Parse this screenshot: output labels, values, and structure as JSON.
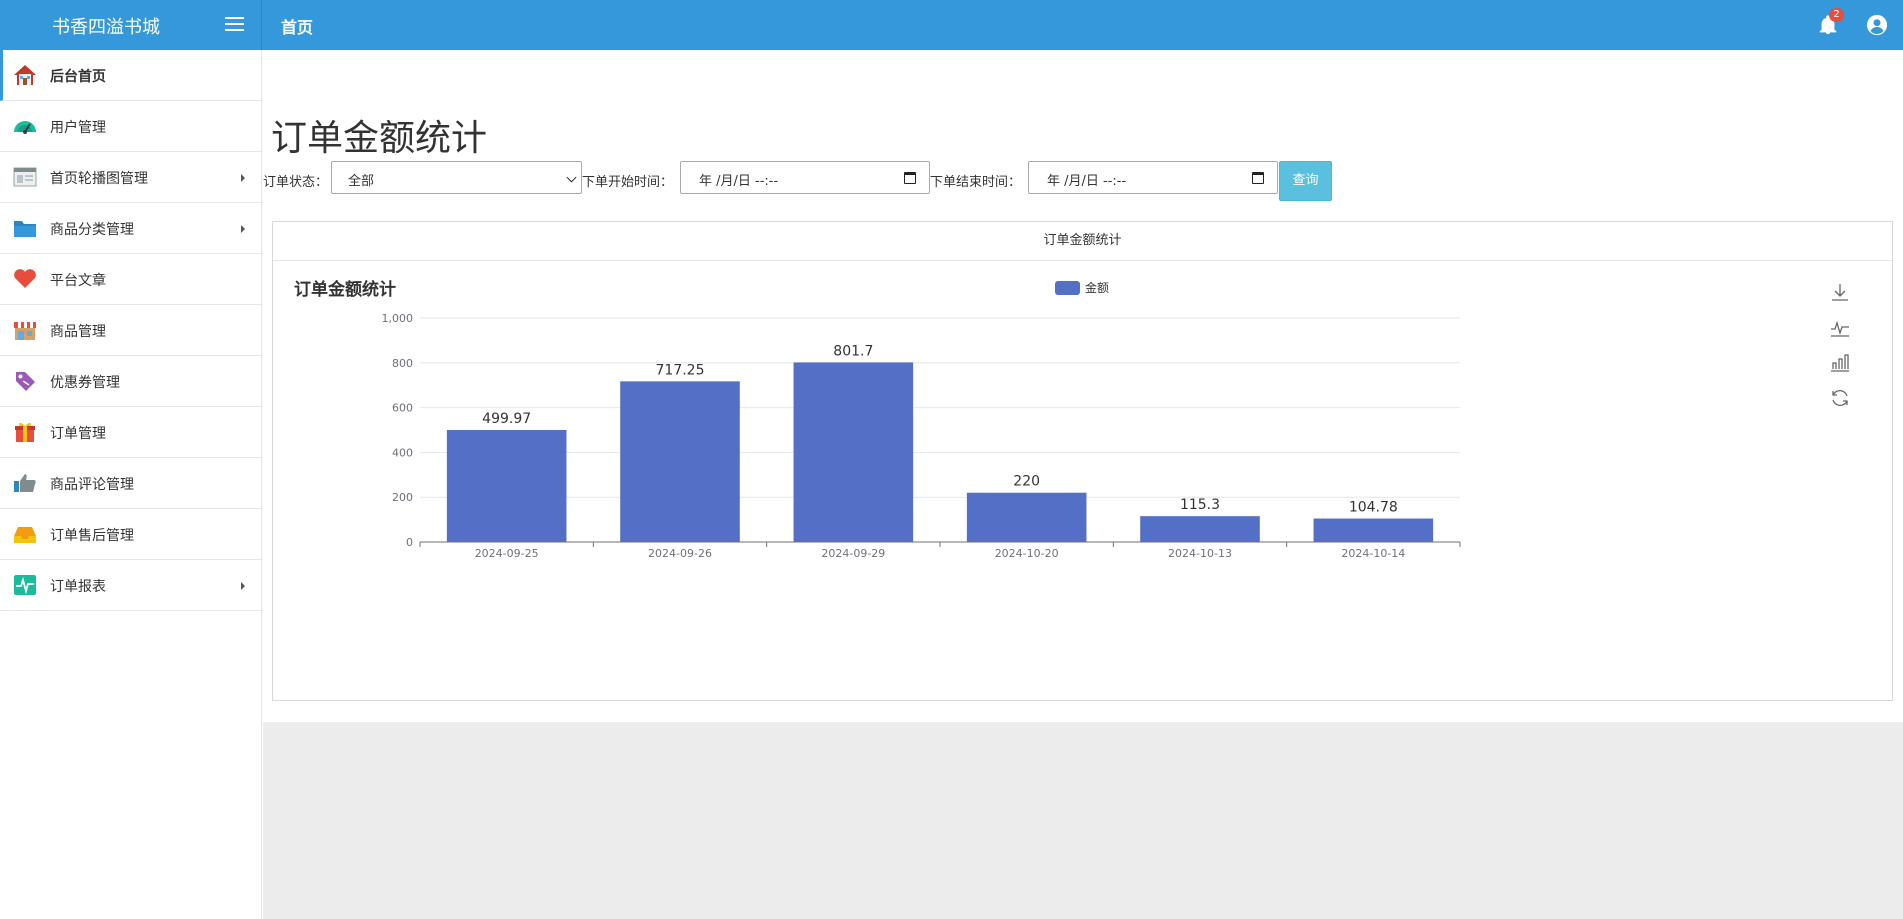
{
  "app": {
    "title": "书香四溢书城"
  },
  "header": {
    "page_title": "首页",
    "notification_count": "2"
  },
  "sidebar": {
    "items": [
      {
        "label": "后台首页",
        "icon": "home-icon",
        "active": true,
        "has_submenu": false
      },
      {
        "label": "用户管理",
        "icon": "gauge-icon",
        "active": false,
        "has_submenu": false
      },
      {
        "label": "首页轮播图管理",
        "icon": "browser-window-icon",
        "active": false,
        "has_submenu": true
      },
      {
        "label": "商品分类管理",
        "icon": "folder-icon",
        "active": false,
        "has_submenu": true
      },
      {
        "label": "平台文章",
        "icon": "heart-icon",
        "active": false,
        "has_submenu": false
      },
      {
        "label": "商品管理",
        "icon": "store-icon",
        "active": false,
        "has_submenu": false
      },
      {
        "label": "优惠券管理",
        "icon": "tag-icon",
        "active": false,
        "has_submenu": false
      },
      {
        "label": "订单管理",
        "icon": "gift-icon",
        "active": false,
        "has_submenu": false
      },
      {
        "label": "商品评论管理",
        "icon": "thumbs-up-icon",
        "active": false,
        "has_submenu": false
      },
      {
        "label": "订单售后管理",
        "icon": "inbox-tray-icon",
        "active": false,
        "has_submenu": false
      },
      {
        "label": "订单报表",
        "icon": "pulse-chart-icon",
        "active": false,
        "has_submenu": true
      }
    ]
  },
  "main": {
    "title": "订单金额统计",
    "filters": {
      "status_label": "订单状态：",
      "status_value": "全部",
      "start_label": "下单开始时间：",
      "start_value": "年 /月/日 --:--",
      "end_label": "下单结束时间：",
      "end_value": "年 /月/日 --:--",
      "query_label": "查询"
    },
    "panel_title": "订单金额统计"
  },
  "colors": {
    "header": "#3498db",
    "bar": "#5470c6",
    "query_button": "#5bc0de",
    "badge": "#e74c3c"
  },
  "chart_data": {
    "type": "bar",
    "title": "订单金额统计",
    "categories": [
      "2024-09-25",
      "2024-09-26",
      "2024-09-29",
      "2024-10-20",
      "2024-10-13",
      "2024-10-14"
    ],
    "series": [
      {
        "name": "金额",
        "values": [
          499.97,
          717.25,
          801.7,
          220,
          115.3,
          104.78
        ]
      }
    ],
    "data_labels": [
      "499.97",
      "717.25",
      "801.7",
      "220",
      "115.3",
      "104.78"
    ],
    "y_ticks": [
      "0",
      "200",
      "400",
      "600",
      "800",
      "1,000"
    ],
    "ylim": [
      0,
      1000
    ],
    "grid": true,
    "legend_position": "top-center",
    "toolbox": [
      "download-icon",
      "line-chart-icon",
      "bar-chart-icon",
      "refresh-icon"
    ]
  }
}
